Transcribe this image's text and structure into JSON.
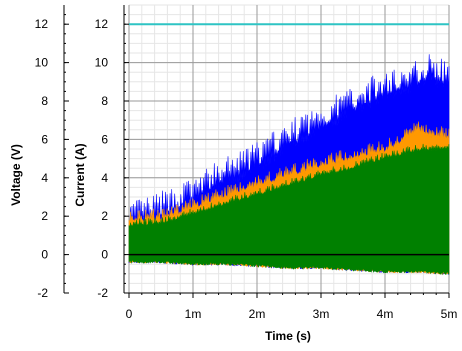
{
  "chart_data": {
    "type": "line",
    "title": "",
    "xlabel": "Time (s)",
    "ylabel_left": "Voltage (V)",
    "ylabel_right": "Current (A)",
    "x_ticks": [
      "0",
      "1m",
      "2m",
      "3m",
      "4m",
      "5m"
    ],
    "xlim": [
      0,
      0.005
    ],
    "ylim": [
      -2,
      13
    ],
    "y_ticks": [
      "-2",
      "0",
      "2",
      "4",
      "6",
      "8",
      "10",
      "12"
    ],
    "grid": true,
    "legend": "none",
    "colors": {
      "voltage": "#2ec4c4",
      "current_peak": "#0000ff",
      "current_orange": "#ff9900",
      "current_fill": "#008000",
      "zero_line": "#000000"
    },
    "series": [
      {
        "color": "#2ec4c4",
        "x": [
          0,
          0.005
        ],
        "y": [
          12,
          12
        ]
      },
      {
        "color": "#0000ff",
        "x": [
          0,
          0.0005,
          0.001,
          0.0015,
          0.002,
          0.0025,
          0.003,
          0.0035,
          0.004,
          0.0045,
          0.0047,
          0.005
        ],
        "y": [
          1.5,
          2.0,
          2.8,
          3.8,
          4.6,
          5.7,
          6.6,
          7.6,
          8.3,
          8.9,
          9.3,
          8.7
        ]
      },
      {
        "color": "#ff9900",
        "x": [
          0,
          0.0005,
          0.001,
          0.0015,
          0.002,
          0.0025,
          0.003,
          0.0035,
          0.004,
          0.0045,
          0.005
        ],
        "y": [
          1.8,
          1.8,
          2.4,
          3.0,
          3.6,
          4.1,
          4.6,
          5.0,
          5.4,
          6.4,
          6.0
        ]
      },
      {
        "color": "#008000",
        "x": [
          0,
          0.0005,
          0.001,
          0.0015,
          0.002,
          0.0025,
          0.003,
          0.0035,
          0.004,
          0.0045,
          0.005
        ],
        "y": [
          1.5,
          1.6,
          2.1,
          2.6,
          3.1,
          3.6,
          4.1,
          4.5,
          5.0,
          5.4,
          5.5
        ],
        "y_min": [
          -0.3,
          -0.3,
          -0.4,
          -0.4,
          -0.5,
          -0.6,
          -0.6,
          -0.7,
          -0.8,
          -0.8,
          -0.9
        ]
      }
    ]
  }
}
